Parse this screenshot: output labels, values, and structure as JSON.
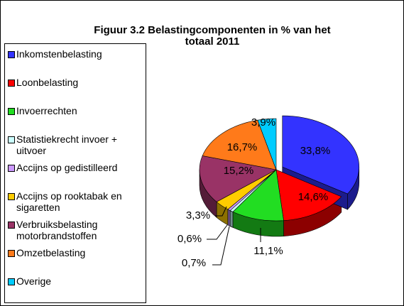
{
  "chart_data": {
    "type": "pie",
    "title": "Figuur 3.2  Belastingcomponenten in % van het totaal 2011",
    "categories": [
      "Inkomstenbelasting",
      "Loonbelasting",
      "Invoerrechten",
      "Statistiekrecht invoer + uitvoer",
      "Accijns op gedistilleerd",
      "Accijns op rooktabak en sigaretten",
      "Verbruiksbelasting motorbrandstoffen",
      "Omzetbelasting",
      "Overige"
    ],
    "values": [
      33.8,
      14.6,
      11.1,
      0.7,
      0.6,
      3.3,
      15.2,
      16.7,
      3.9
    ],
    "value_labels": [
      "33,8%",
      "14,6%",
      "11,1%",
      "0,7%",
      "0,6%",
      "3,3%",
      "15,2%",
      "16,7%",
      "3,9%"
    ],
    "colors": [
      "#3333ff",
      "#ff0000",
      "#22dd22",
      "#ccffff",
      "#cc99ff",
      "#ffcc00",
      "#993366",
      "#ff7a1a",
      "#00ccff"
    ],
    "legend": "left"
  }
}
